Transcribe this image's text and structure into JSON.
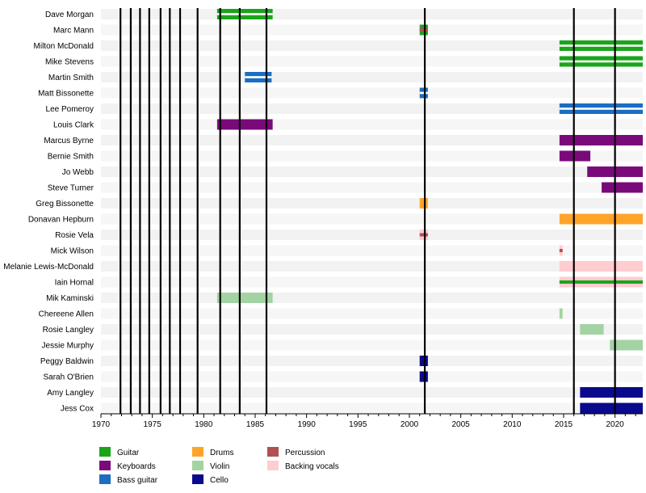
{
  "chart_data": {
    "type": "timeline",
    "title": "",
    "xlabel": "",
    "ylabel": "",
    "xlim": [
      1970,
      2022.7
    ],
    "x_ticks": [
      1970,
      1975,
      1980,
      1985,
      1990,
      1995,
      2000,
      2005,
      2010,
      2015,
      2020
    ],
    "grid": "horizontal-bands",
    "legend_position": "bottom-left",
    "colors": {
      "Guitar": "#1aa51a",
      "Keyboards": "#7a0a7a",
      "Bass guitar": "#1b6ec2",
      "Drums": "#ffa42b",
      "Violin": "#a3d3a3",
      "Cello": "#0a0a8c",
      "Percussion": "#b05050",
      "Backing vocals": "#ffccd0"
    },
    "legend": [
      {
        "label": "Guitar",
        "key": "Guitar"
      },
      {
        "label": "Keyboards",
        "key": "Keyboards"
      },
      {
        "label": "Bass guitar",
        "key": "Bass guitar"
      },
      {
        "label": "Drums",
        "key": "Drums"
      },
      {
        "label": "Violin",
        "key": "Violin"
      },
      {
        "label": "Cello",
        "key": "Cello"
      },
      {
        "label": "Percussion",
        "key": "Percussion"
      },
      {
        "label": "Backing vocals",
        "key": "Backing vocals"
      }
    ],
    "release_years": [
      1971.9,
      1972.9,
      1973.8,
      1974.7,
      1975.8,
      1976.7,
      1977.7,
      1979.4,
      1981.6,
      1983.5,
      1986.1,
      2001.5,
      2016.0,
      2020.0
    ],
    "members": [
      {
        "name": "Dave Morgan",
        "roles": [
          {
            "instrument": "Guitar",
            "periods": [
              [
                1981.3,
                1986.7
              ]
            ]
          }
        ]
      },
      {
        "name": "Marc Mann",
        "roles": [
          {
            "instrument": "Guitar",
            "periods": [
              [
                2001.0,
                2001.8
              ]
            ]
          },
          {
            "instrument": "Percussion",
            "periods": [
              [
                2001.0,
                2001.8
              ]
            ]
          }
        ]
      },
      {
        "name": "Milton McDonald",
        "roles": [
          {
            "instrument": "Guitar",
            "periods": [
              [
                2014.6,
                2022.7
              ]
            ]
          }
        ]
      },
      {
        "name": "Mike Stevens",
        "roles": [
          {
            "instrument": "Guitar",
            "periods": [
              [
                2014.6,
                2022.7
              ]
            ]
          }
        ]
      },
      {
        "name": "Martin Smith",
        "roles": [
          {
            "instrument": "Bass guitar",
            "periods": [
              [
                1984.0,
                1986.6
              ]
            ]
          }
        ]
      },
      {
        "name": "Matt Bissonette",
        "roles": [
          {
            "instrument": "Bass guitar",
            "periods": [
              [
                2001.0,
                2001.8
              ]
            ]
          }
        ]
      },
      {
        "name": "Lee Pomeroy",
        "roles": [
          {
            "instrument": "Bass guitar",
            "periods": [
              [
                2014.6,
                2022.7
              ]
            ]
          }
        ]
      },
      {
        "name": "Louis Clark",
        "roles": [
          {
            "instrument": "Keyboards",
            "periods": [
              [
                1981.3,
                1986.7
              ]
            ]
          }
        ]
      },
      {
        "name": "Marcus Byrne",
        "roles": [
          {
            "instrument": "Keyboards",
            "periods": [
              [
                2014.6,
                2022.7
              ]
            ]
          }
        ]
      },
      {
        "name": "Bernie Smith",
        "roles": [
          {
            "instrument": "Keyboards",
            "periods": [
              [
                2014.6,
                2017.6
              ]
            ]
          }
        ]
      },
      {
        "name": "Jo Webb",
        "roles": [
          {
            "instrument": "Keyboards",
            "periods": [
              [
                2017.3,
                2022.7
              ]
            ]
          }
        ]
      },
      {
        "name": "Steve Turner",
        "roles": [
          {
            "instrument": "Keyboards",
            "periods": [
              [
                2018.7,
                2022.7
              ]
            ]
          }
        ]
      },
      {
        "name": "Greg Bissonette",
        "roles": [
          {
            "instrument": "Drums",
            "periods": [
              [
                2001.0,
                2001.8
              ]
            ]
          }
        ]
      },
      {
        "name": "Donavan Hepburn",
        "roles": [
          {
            "instrument": "Drums",
            "periods": [
              [
                2014.6,
                2022.7
              ]
            ]
          }
        ]
      },
      {
        "name": "Rosie Vela",
        "roles": [
          {
            "instrument": "Backing vocals",
            "periods": [
              [
                2001.0,
                2001.8
              ]
            ]
          },
          {
            "instrument": "Percussion",
            "periods": [
              [
                2001.0,
                2001.8
              ]
            ]
          }
        ]
      },
      {
        "name": "Mick Wilson",
        "roles": [
          {
            "instrument": "Backing vocals",
            "periods": [
              [
                2014.6,
                2014.9
              ]
            ]
          },
          {
            "instrument": "Percussion",
            "periods": [
              [
                2014.6,
                2014.9
              ]
            ]
          }
        ]
      },
      {
        "name": "Melanie Lewis-McDonald",
        "roles": [
          {
            "instrument": "Backing vocals",
            "periods": [
              [
                2014.6,
                2022.7
              ]
            ]
          }
        ]
      },
      {
        "name": "Iain Hornal",
        "roles": [
          {
            "instrument": "Backing vocals",
            "periods": [
              [
                2014.6,
                2022.7
              ]
            ]
          },
          {
            "instrument": "Guitar",
            "periods": [
              [
                2014.6,
                2022.7
              ]
            ]
          }
        ]
      },
      {
        "name": "Mik Kaminski",
        "roles": [
          {
            "instrument": "Violin",
            "periods": [
              [
                1981.3,
                1986.7
              ]
            ]
          }
        ]
      },
      {
        "name": "Chereene Allen",
        "roles": [
          {
            "instrument": "Violin",
            "periods": [
              [
                2014.6,
                2014.9
              ]
            ]
          }
        ]
      },
      {
        "name": "Rosie Langley",
        "roles": [
          {
            "instrument": "Violin",
            "periods": [
              [
                2016.6,
                2018.9
              ]
            ]
          }
        ]
      },
      {
        "name": "Jessie Murphy",
        "roles": [
          {
            "instrument": "Violin",
            "periods": [
              [
                2019.5,
                2022.7
              ]
            ]
          }
        ]
      },
      {
        "name": "Peggy Baldwin",
        "roles": [
          {
            "instrument": "Cello",
            "periods": [
              [
                2001.0,
                2001.8
              ]
            ]
          }
        ]
      },
      {
        "name": "Sarah O'Brien",
        "roles": [
          {
            "instrument": "Cello",
            "periods": [
              [
                2001.0,
                2001.8
              ]
            ]
          }
        ]
      },
      {
        "name": "Amy Langley",
        "roles": [
          {
            "instrument": "Cello",
            "periods": [
              [
                2016.6,
                2022.7
              ]
            ]
          }
        ]
      },
      {
        "name": "Jess Cox",
        "roles": [
          {
            "instrument": "Cello",
            "periods": [
              [
                2016.6,
                2022.7
              ]
            ]
          }
        ]
      }
    ]
  }
}
